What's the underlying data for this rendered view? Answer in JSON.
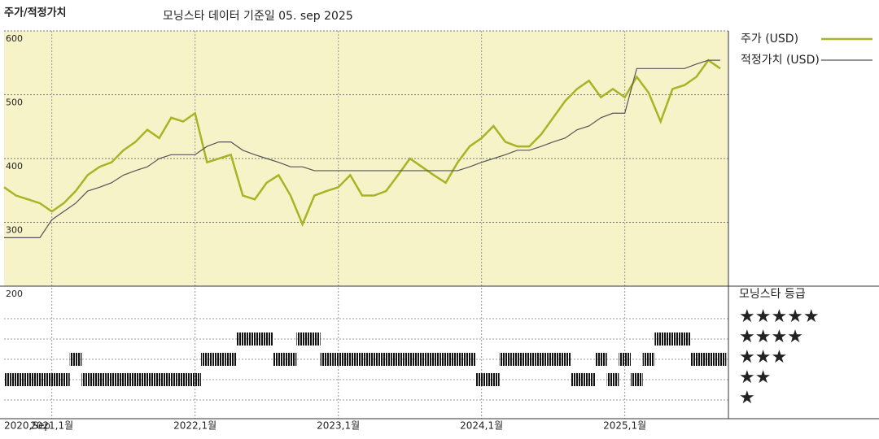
{
  "header": {
    "title": "주가/적정가치",
    "subtitle": "모닝스타 데이터 기준일 05. sep 2025"
  },
  "chart_data": {
    "type": "line",
    "x": [
      "2020-09",
      "2020-10",
      "2020-11",
      "2020-12",
      "2021-01",
      "2021-02",
      "2021-03",
      "2021-04",
      "2021-05",
      "2021-06",
      "2021-07",
      "2021-08",
      "2021-09",
      "2021-10",
      "2021-11",
      "2021-12",
      "2022-01",
      "2022-02",
      "2022-03",
      "2022-04",
      "2022-05",
      "2022-06",
      "2022-07",
      "2022-08",
      "2022-09",
      "2022-10",
      "2022-11",
      "2022-12",
      "2023-01",
      "2023-02",
      "2023-03",
      "2023-04",
      "2023-05",
      "2023-06",
      "2023-07",
      "2023-08",
      "2023-09",
      "2023-10",
      "2023-11",
      "2023-12",
      "2024-01",
      "2024-02",
      "2024-03",
      "2024-04",
      "2024-05",
      "2024-06",
      "2024-07",
      "2024-08",
      "2024-09",
      "2024-10",
      "2024-11",
      "2024-12",
      "2025-01",
      "2025-02",
      "2025-03",
      "2025-04",
      "2025-05",
      "2025-06",
      "2025-07",
      "2025-08",
      "2025-09"
    ],
    "series": [
      {
        "name": "주가 (USD)",
        "color": "#a9b325",
        "values": [
          355,
          342,
          336,
          330,
          317,
          330,
          349,
          374,
          387,
          394,
          413,
          426,
          445,
          432,
          464,
          458,
          471,
          394,
          400,
          406,
          342,
          336,
          362,
          374,
          342,
          297,
          342,
          349,
          355,
          374,
          342,
          342,
          349,
          374,
          400,
          387,
          374,
          362,
          394,
          419,
          432,
          451,
          426,
          419,
          419,
          438,
          464,
          490,
          509,
          522,
          496,
          509,
          496,
          528,
          503,
          458,
          509,
          515,
          528,
          554,
          541
        ]
      },
      {
        "name": "적정가치 (USD)",
        "color": "#555555",
        "values": [
          276,
          276,
          276,
          276,
          304,
          317,
          330,
          349,
          355,
          362,
          374,
          381,
          387,
          400,
          406,
          406,
          406,
          419,
          426,
          426,
          413,
          406,
          400,
          394,
          387,
          387,
          381,
          381,
          381,
          381,
          381,
          381,
          381,
          381,
          381,
          381,
          381,
          381,
          381,
          387,
          394,
          400,
          406,
          413,
          413,
          419,
          426,
          432,
          445,
          451,
          464,
          471,
          471,
          541,
          541,
          541,
          541,
          541,
          548,
          554,
          554
        ]
      }
    ],
    "ylim": [
      200,
      600
    ],
    "yticks": [
      200,
      300,
      400,
      500,
      600
    ],
    "xticks": [
      {
        "value": "2020-09",
        "label": "2020,Sep"
      },
      {
        "value": "2021-01",
        "label": "2021,1월"
      },
      {
        "value": "2022-01",
        "label": "2022,1월"
      },
      {
        "value": "2023-01",
        "label": "2023,1월"
      },
      {
        "value": "2024-01",
        "label": "2024,1월"
      },
      {
        "value": "2025-01",
        "label": "2025,1월"
      }
    ],
    "grid": true,
    "background": "#f7f3c9",
    "rating": {
      "title": "모닝스타 등급",
      "color": "#111111",
      "ticks": [
        {
          "value": 5,
          "label": "★★★★★"
        },
        {
          "value": 4,
          "label": "★★★★"
        },
        {
          "value": 3,
          "label": "★★★"
        },
        {
          "value": 2,
          "label": "★★"
        },
        {
          "value": 1,
          "label": "★"
        }
      ],
      "values": [
        2,
        2,
        2,
        2,
        2,
        2,
        3,
        2,
        2,
        2,
        2,
        2,
        2,
        2,
        2,
        2,
        2,
        3,
        3,
        3,
        4,
        4,
        4,
        3,
        3,
        4,
        4,
        3,
        3,
        3,
        3,
        3,
        3,
        3,
        3,
        3,
        3,
        3,
        3,
        3,
        2,
        2,
        3,
        3,
        3,
        3,
        3,
        3,
        2,
        2,
        3,
        2,
        3,
        2,
        3,
        4,
        4,
        4,
        3,
        3,
        3
      ]
    }
  }
}
